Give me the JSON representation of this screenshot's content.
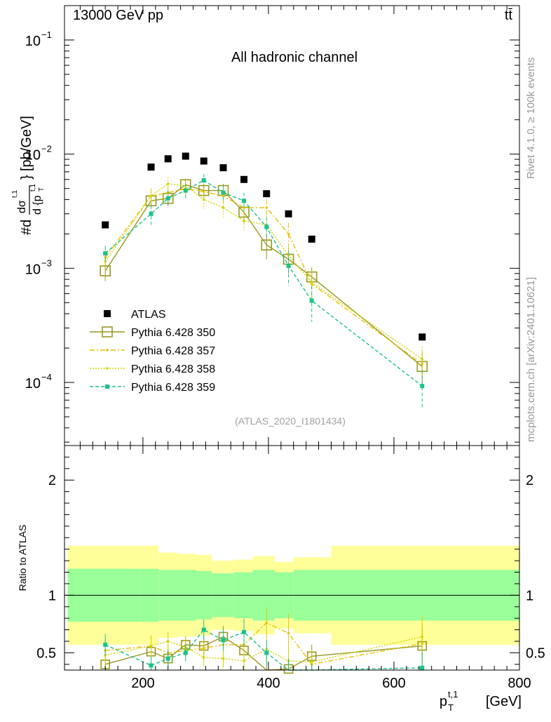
{
  "header": {
    "left": "13000 GeV pp",
    "right": "tt̄"
  },
  "side": {
    "rivet": "Rivet 4.1.0, ≥ 100k events",
    "mcplots": "mcplots.cern.ch [arXiv:2401.10621]"
  },
  "chart_data": {
    "type": "scatter",
    "title": "All hadronic channel",
    "analysis_tag": "(ATLAS_2020_I1801434)",
    "ylabel_main": "#d dσ^{t,1}/d {p_T^{t,1}} [pb/GeV]",
    "ylabel_main_parts": {
      "prefix": "#d",
      "num": "dσ",
      "num_sup": "t,1",
      "den_d": "d {p",
      "den_sub": "T",
      "den_sup": "t,1",
      "den_close": "}",
      "unit": "[pb/GeV]"
    },
    "ylabel_ratio": "Ratio to ATLAS",
    "xlabel": {
      "base": "p",
      "sub": "T",
      "sup": "t,1",
      "unit": "[GeV]"
    },
    "xlim": [
      75,
      800
    ],
    "ylim_main": [
      2.8e-05,
      0.2
    ],
    "ylim_ratio": [
      0.35,
      2.3
    ],
    "x_ticks": [
      200,
      400,
      600,
      800
    ],
    "y_ticks_main": [
      {
        "value": 0.1,
        "base": "10",
        "exp": "−1"
      },
      {
        "value": 0.01,
        "base": "10",
        "exp": "−2"
      },
      {
        "value": 0.001,
        "base": "10",
        "exp": "−3"
      },
      {
        "value": 0.0001,
        "base": "10",
        "exp": "−4"
      }
    ],
    "y_ticks_ratio": [
      "0.5",
      "1",
      "2"
    ],
    "bin_edges": [
      80,
      195,
      225,
      255,
      285,
      310,
      345,
      375,
      410,
      440,
      500,
      800
    ],
    "x": [
      140,
      213,
      240,
      268,
      297,
      328,
      361,
      397,
      432,
      469,
      645
    ],
    "series": [
      {
        "name": "ATLAS",
        "color": "#000000",
        "marker": "square-filled",
        "line": "none",
        "values": [
          0.0024,
          0.0077,
          0.0091,
          0.0096,
          0.0087,
          0.0076,
          0.006,
          0.0045,
          0.003,
          0.0018,
          0.00025
        ]
      },
      {
        "name": "Pythia 6.428 350",
        "color": "#999922",
        "marker": "square-open",
        "line": "solid",
        "values": [
          0.00095,
          0.0039,
          0.0041,
          0.0054,
          0.0048,
          0.0048,
          0.0031,
          0.0016,
          0.0012,
          0.00084,
          0.000138
        ],
        "errors": [
          0.00018,
          0.0006,
          0.0006,
          0.0007,
          0.0007,
          0.0007,
          0.0006,
          0.0004,
          0.0003,
          0.00018,
          4e-05
        ],
        "ratio": [
          0.4,
          0.51,
          0.45,
          0.57,
          0.56,
          0.64,
          0.52,
          0.33,
          0.36,
          0.47,
          0.56
        ]
      },
      {
        "name": "Pythia 6.428 357",
        "color": "#e6c200",
        "marker": "dot",
        "line": "dashdot",
        "values": [
          0.00125,
          0.0043,
          0.0046,
          0.005,
          0.0047,
          0.0043,
          0.0034,
          0.0034,
          0.002,
          0.00073,
          0.000145
        ],
        "errors": [
          0.00022,
          0.0007,
          0.0007,
          0.0007,
          0.0007,
          0.0007,
          0.0006,
          0.0006,
          0.0005,
          0.00018,
          4.5e-05
        ],
        "ratio": [
          0.52,
          0.56,
          0.5,
          0.52,
          0.54,
          0.57,
          0.57,
          0.76,
          0.67,
          0.4,
          0.58
        ]
      },
      {
        "name": "Pythia 6.428 358",
        "color": "#d4d400",
        "marker": "dot",
        "line": "dotted",
        "values": [
          0.00115,
          0.0043,
          0.0055,
          0.0053,
          0.004,
          0.0034,
          0.0026,
          0.0024,
          0.0013,
          0.00075,
          0.00016
        ],
        "errors": [
          0.0002,
          0.0007,
          0.0008,
          0.0008,
          0.0007,
          0.0006,
          0.0005,
          0.0005,
          0.00035,
          0.0002,
          4.5e-05
        ],
        "ratio": [
          0.48,
          0.56,
          0.6,
          0.55,
          0.46,
          0.45,
          0.43,
          0.53,
          0.43,
          0.42,
          0.64
        ]
      },
      {
        "name": "Pythia 6.428 359",
        "color": "#19c38c",
        "marker": "square-small",
        "line": "dashed",
        "values": [
          0.00135,
          0.003,
          0.0041,
          0.0048,
          0.0059,
          0.0046,
          0.0039,
          0.0023,
          0.00105,
          0.00052,
          9.3e-05
        ],
        "errors": [
          0.00022,
          0.0006,
          0.0007,
          0.0007,
          0.0008,
          0.0007,
          0.0007,
          0.0005,
          0.00035,
          0.00018,
          3.5e-05
        ],
        "ratio": [
          0.57,
          0.39,
          0.45,
          0.5,
          0.7,
          0.61,
          0.68,
          0.5,
          0.33,
          0.3,
          0.37
        ]
      }
    ],
    "bands": {
      "green_half_width": [
        0.23,
        0.23,
        0.22,
        0.22,
        0.21,
        0.19,
        0.2,
        0.22,
        0.2,
        0.22,
        0.22
      ],
      "yellow_half_width": [
        0.43,
        0.43,
        0.37,
        0.36,
        0.35,
        0.3,
        0.31,
        0.34,
        0.29,
        0.33,
        0.43
      ]
    }
  }
}
